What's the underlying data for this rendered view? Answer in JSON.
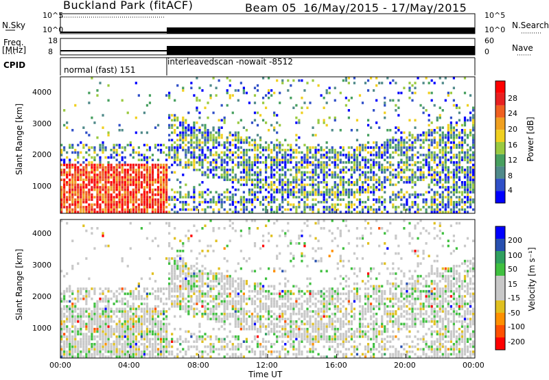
{
  "header": {
    "site": "Buckland Park (fitACF)",
    "beam": "Beam 05",
    "dates": "16/May/2015 - 17/May/2015"
  },
  "top_panels": {
    "nsky_label": "N.Sky",
    "nsearch_label": "N.Search",
    "freq_label_1": "Freq.",
    "freq_label_2": "[MHz]",
    "nave_label": "Nave",
    "cpid_label": "CPID",
    "nsky_ticks": [
      "10^5",
      "10^0"
    ],
    "nsearch_ticks": [
      "10^5",
      "10^0"
    ],
    "freq_ticks": [
      "18",
      "8"
    ],
    "nave_ticks": [
      "60",
      "0"
    ],
    "cpid_1": "normal (fast) 151",
    "cpid_2": "interleavedscan -nowait -8512"
  },
  "colors": {
    "power_scale": [
      "#0000ff",
      "#3050c8",
      "#508a8a",
      "#48a060",
      "#9aca40",
      "#f0d020",
      "#f0a020",
      "#f06020",
      "#e82020",
      "#ff0000"
    ],
    "velocity_scale": [
      "#ff0000",
      "#ff5000",
      "#ff9000",
      "#e0c020",
      "#c8c8c8",
      "#c8c8c8",
      "#40c040",
      "#30a060",
      "#2850b0",
      "#0000ff"
    ]
  },
  "chart_data": [
    {
      "type": "heatmap",
      "name": "power",
      "ylabel": "Slant Range [km]",
      "yticks": [
        "1000",
        "2000",
        "3000",
        "4000"
      ],
      "ylim": [
        200,
        4500
      ],
      "xlim": [
        "00:00",
        "24:00"
      ],
      "colorbar_label": "Power [dB]",
      "colorbar_ticks": [
        "4",
        "8",
        "12",
        "16",
        "20",
        "24",
        "28"
      ],
      "colorbar_range": [
        0,
        30
      ]
    },
    {
      "type": "heatmap",
      "name": "velocity",
      "ylabel": "Slant Range [km]",
      "yticks": [
        "1000",
        "2000",
        "3000",
        "4000"
      ],
      "ylim": [
        200,
        4500
      ],
      "xlim": [
        "00:00",
        "24:00"
      ],
      "colorbar_label": "Velocity [m s⁻¹]",
      "colorbar_ticks": [
        "-200",
        "-100",
        "-50",
        "-15",
        "15",
        "50",
        "100",
        "200"
      ],
      "colorbar_range": [
        -250,
        250
      ]
    }
  ],
  "xaxis": {
    "label": "Time UT",
    "ticks": [
      "00:00",
      "04:00",
      "08:00",
      "12:00",
      "16:00",
      "20:00",
      "00:00"
    ]
  }
}
